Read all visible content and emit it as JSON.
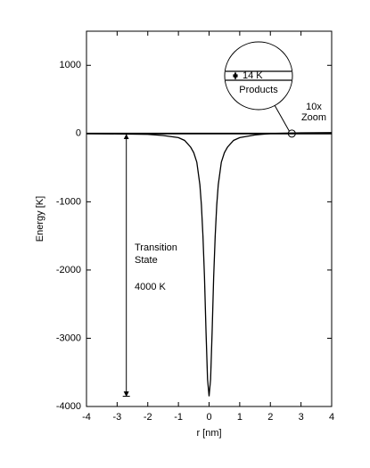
{
  "chart_data": {
    "type": "line",
    "x_label": "r [nm]",
    "y_label": "Energy [K]",
    "x": [
      -4,
      -3,
      -2,
      -1.5,
      -1,
      -0.8,
      -0.6,
      -0.5,
      -0.4,
      -0.3,
      -0.25,
      -0.2,
      -0.15,
      -0.1,
      -0.05,
      0,
      0.05,
      0.1,
      0.15,
      0.2,
      0.25,
      0.3,
      0.4,
      0.5,
      0.6,
      0.8,
      1,
      1.5,
      2,
      3,
      4
    ],
    "series": [
      {
        "name": "Energy",
        "color": "#000000",
        "values": [
          0,
          -5,
          -12,
          -28,
          -60,
          -100,
          -200,
          -280,
          -420,
          -750,
          -1050,
          -1500,
          -2100,
          -2900,
          -3600,
          -3850,
          -3600,
          -2900,
          -2100,
          -1500,
          -1050,
          -750,
          -420,
          -280,
          -200,
          -100,
          -60,
          -20,
          0,
          10,
          14
        ]
      }
    ],
    "xlim": [
      -4,
      4
    ],
    "xticks": [
      -4,
      -3,
      -2,
      -1,
      0,
      1,
      2,
      3,
      4
    ],
    "ylim": [
      -4000,
      1500
    ],
    "yticks": [
      -4000,
      -3000,
      -2000,
      -1000,
      0,
      1000
    ],
    "grid": false,
    "annotations": {
      "transition_label": [
        "Transition",
        "State"
      ],
      "barrier_label": "4000 K",
      "zoom_gap_label": "14 K",
      "zoom_products_label": "Products",
      "zoom_label": [
        "10x",
        "Zoom"
      ]
    }
  }
}
